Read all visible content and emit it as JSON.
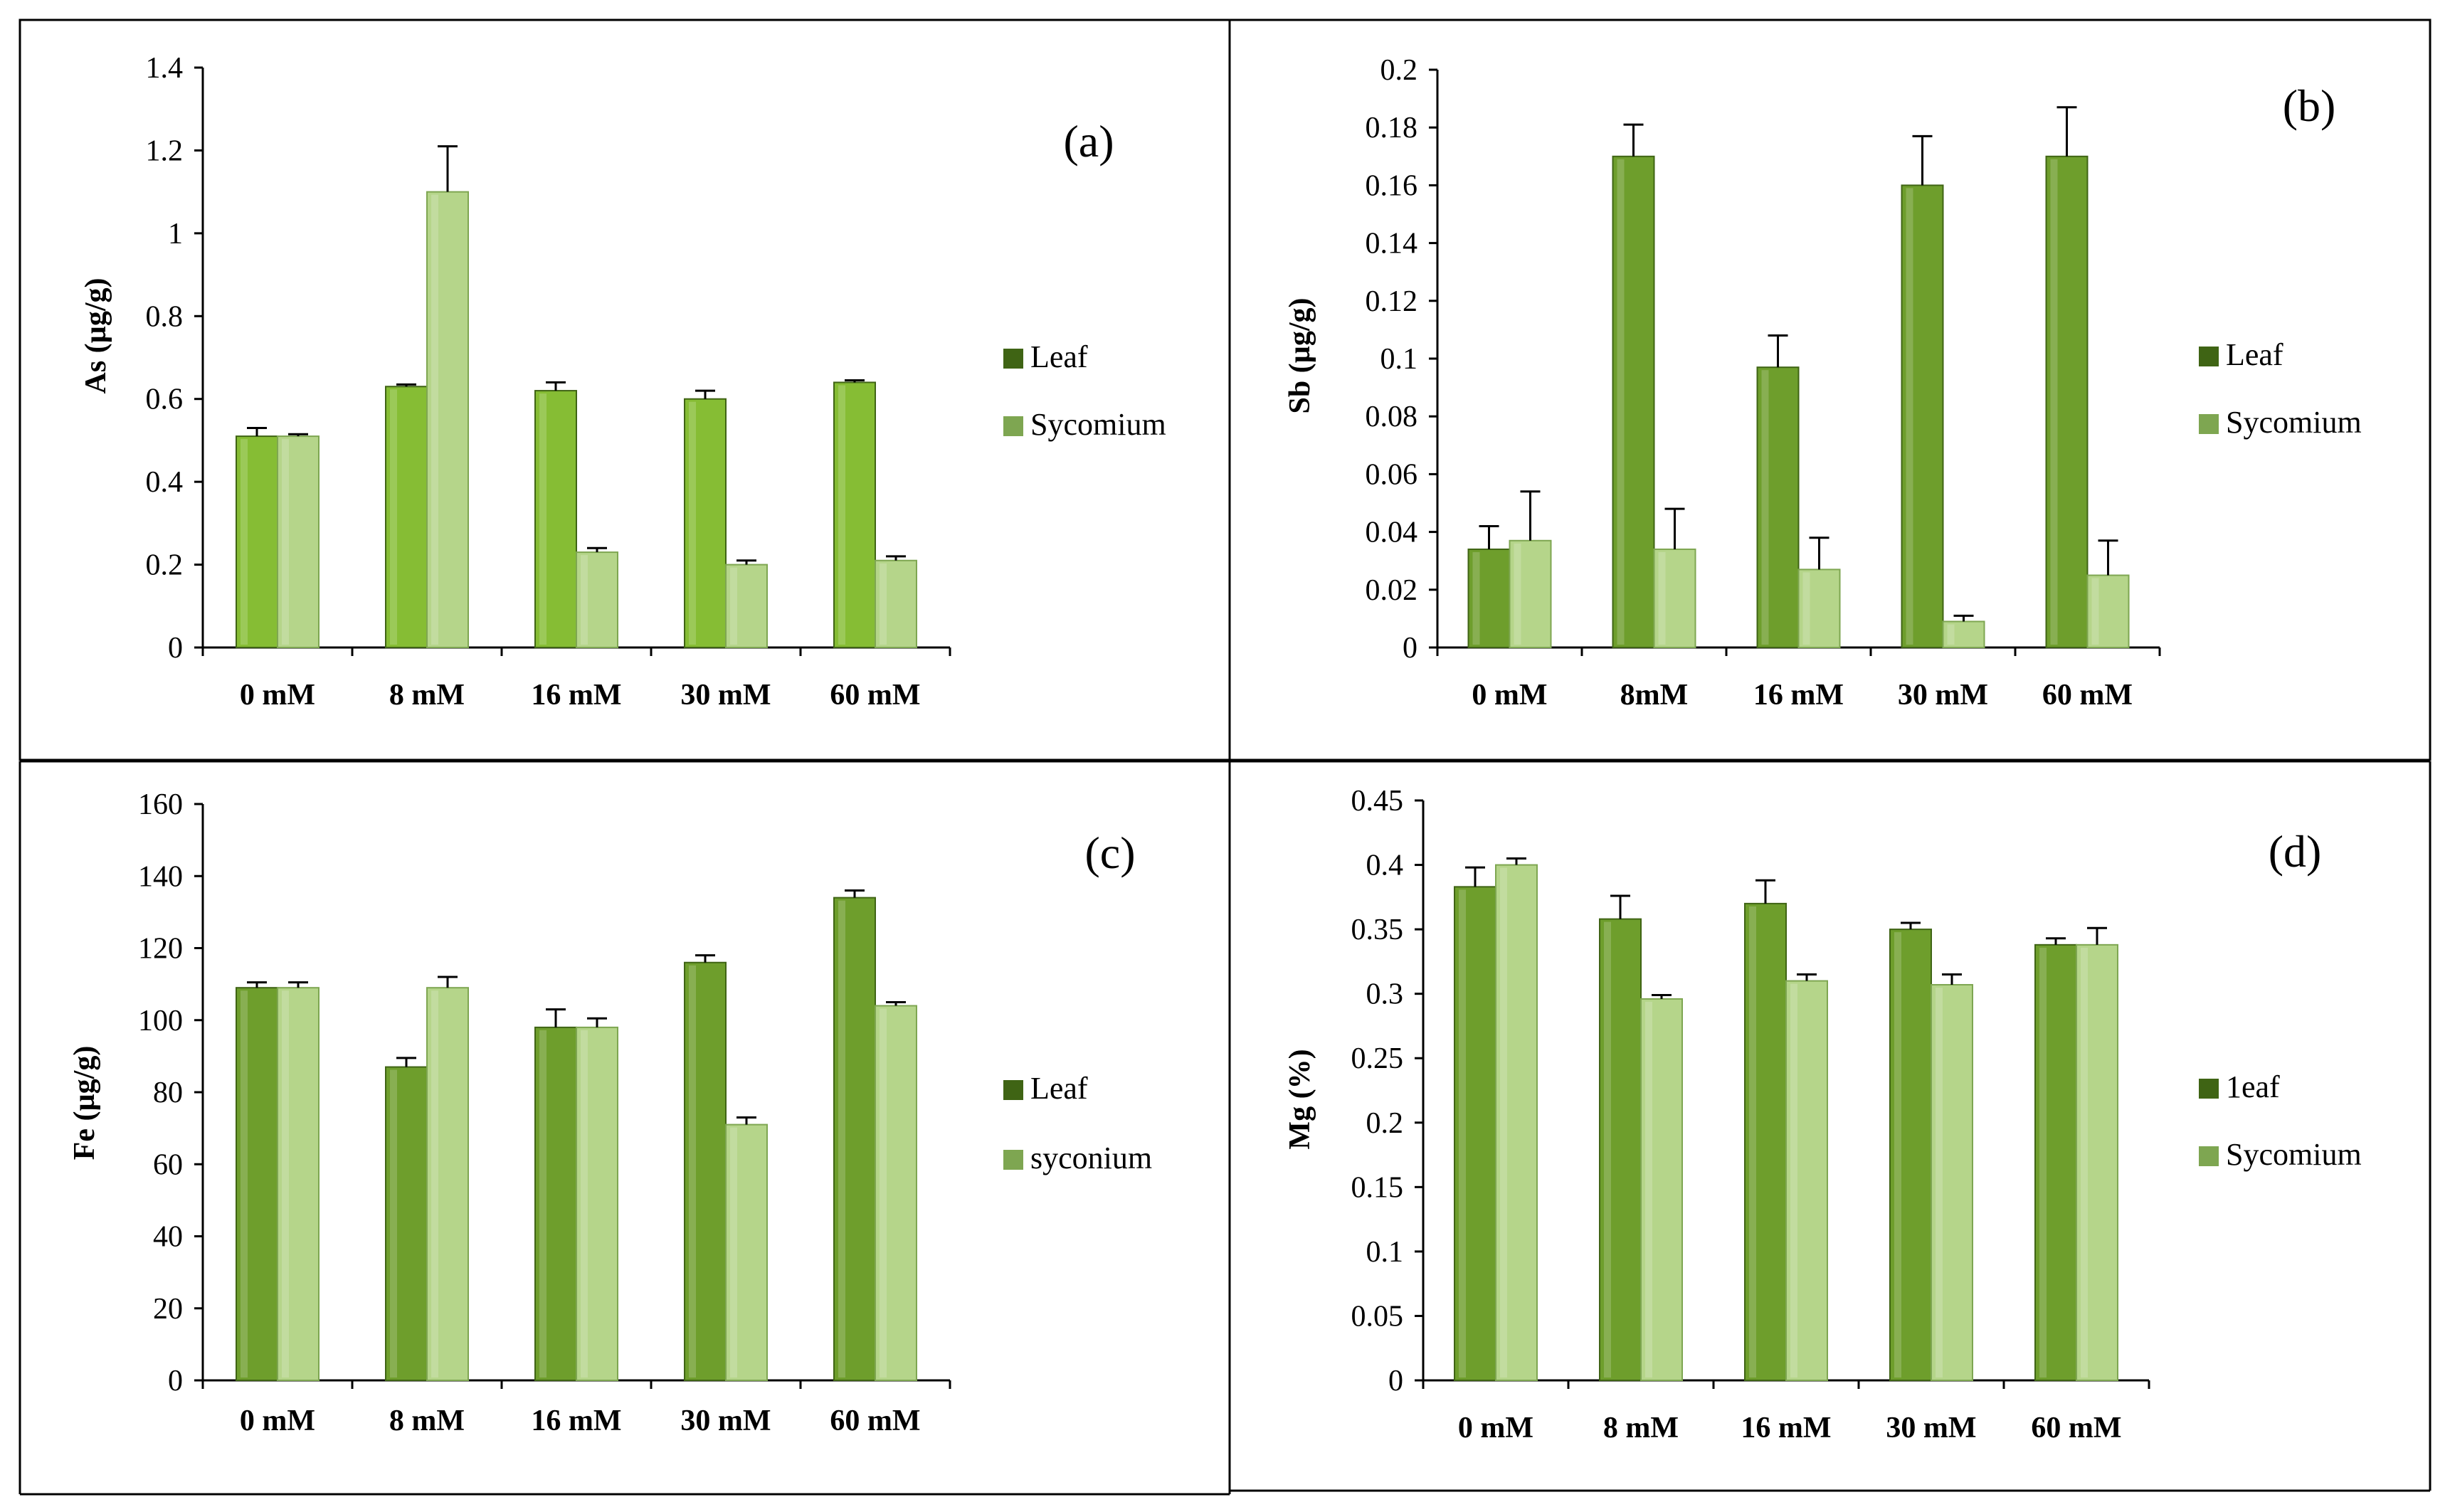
{
  "colors": {
    "leaf": "#6e9e2c",
    "leaf_edge": "#3f6414",
    "leaf_alt": "#86bd34",
    "syconium": "#b5d58a",
    "syconium_edge": "#7ea651",
    "axis": "#000000",
    "frame": "#000000"
  },
  "chart_data": [
    {
      "id": "a",
      "type": "bar",
      "panel_label": "(a)",
      "ylabel": "As (µg/g)",
      "xlabel": "",
      "categories": [
        "0 mM",
        "8 mM",
        "16 mM",
        "30 mM",
        "60 mM"
      ],
      "ylim": [
        0,
        1.4
      ],
      "yticks": [
        "0",
        "0.2",
        "0.4",
        "0.6",
        "0.8",
        "1",
        "1.2",
        "1.4"
      ],
      "ytick_values": [
        0,
        0.2,
        0.4,
        0.6,
        0.8,
        1.0,
        1.2,
        1.4
      ],
      "legend_position": "right",
      "series": [
        {
          "name": "Leaf",
          "values": [
            0.51,
            0.63,
            0.62,
            0.6,
            0.64
          ],
          "errors": [
            0.02,
            0.005,
            0.02,
            0.02,
            0.005
          ]
        },
        {
          "name": "Sycomium",
          "values": [
            0.51,
            1.1,
            0.23,
            0.2,
            0.21
          ],
          "errors": [
            0.005,
            0.11,
            0.01,
            0.01,
            0.01
          ]
        }
      ]
    },
    {
      "id": "b",
      "type": "bar",
      "panel_label": "(b)",
      "ylabel": "Sb (µg/g)",
      "xlabel": "",
      "categories": [
        "0 mM",
        "8mM",
        "16 mM",
        "30 mM",
        "60 mM"
      ],
      "ylim": [
        0,
        0.2
      ],
      "yticks": [
        "0",
        "0.02",
        "0.04",
        "0.06",
        "0.08",
        "0.1",
        "0.12",
        "0.14",
        "0.16",
        "0.18",
        "0.2"
      ],
      "ytick_values": [
        0,
        0.02,
        0.04,
        0.06,
        0.08,
        0.1,
        0.12,
        0.14,
        0.16,
        0.18,
        0.2
      ],
      "legend_position": "right",
      "series": [
        {
          "name": "Leaf",
          "values": [
            0.034,
            0.17,
            0.097,
            0.16,
            0.17
          ],
          "errors": [
            0.008,
            0.011,
            0.011,
            0.017,
            0.017
          ]
        },
        {
          "name": "Sycomium",
          "values": [
            0.037,
            0.034,
            0.027,
            0.009,
            0.025
          ],
          "errors": [
            0.017,
            0.014,
            0.011,
            0.002,
            0.012
          ]
        }
      ]
    },
    {
      "id": "c",
      "type": "bar",
      "panel_label": "(c)",
      "ylabel": "Fe (µg/g)",
      "xlabel": "",
      "categories": [
        "0 mM",
        "8 mM",
        "16 mM",
        "30 mM",
        "60 mM"
      ],
      "ylim": [
        0,
        160
      ],
      "yticks": [
        "0",
        "20",
        "40",
        "60",
        "80",
        "100",
        "120",
        "140",
        "160"
      ],
      "ytick_values": [
        0,
        20,
        40,
        60,
        80,
        100,
        120,
        140,
        160
      ],
      "legend_position": "right",
      "series": [
        {
          "name": "Leaf",
          "values": [
            109,
            87,
            98,
            116,
            134
          ],
          "errors": [
            1.5,
            2.5,
            5,
            2,
            2
          ]
        },
        {
          "name": "syconium",
          "values": [
            109,
            109,
            98,
            71,
            104
          ],
          "errors": [
            1.5,
            3,
            2.5,
            2,
            1
          ]
        }
      ]
    },
    {
      "id": "d",
      "type": "bar",
      "panel_label": "(d)",
      "ylabel": "Mg (%)",
      "xlabel": "",
      "categories": [
        "0 mM",
        "8 mM",
        "16 mM",
        "30 mM",
        "60 mM"
      ],
      "ylim": [
        0,
        0.45
      ],
      "yticks": [
        "0",
        "0.05",
        "0.1",
        "0.15",
        "0.2",
        "0.25",
        "0.3",
        "0.35",
        "0.4",
        "0.45"
      ],
      "ytick_values": [
        0,
        0.05,
        0.1,
        0.15,
        0.2,
        0.25,
        0.3,
        0.35,
        0.4,
        0.45
      ],
      "legend_position": "right",
      "series": [
        {
          "name": "1eaf",
          "values": [
            0.383,
            0.358,
            0.37,
            0.35,
            0.338
          ],
          "errors": [
            0.015,
            0.018,
            0.018,
            0.005,
            0.005
          ]
        },
        {
          "name": "Sycomium",
          "values": [
            0.4,
            0.296,
            0.31,
            0.307,
            0.338
          ],
          "errors": [
            0.005,
            0.003,
            0.005,
            0.008,
            0.013
          ]
        }
      ]
    }
  ]
}
